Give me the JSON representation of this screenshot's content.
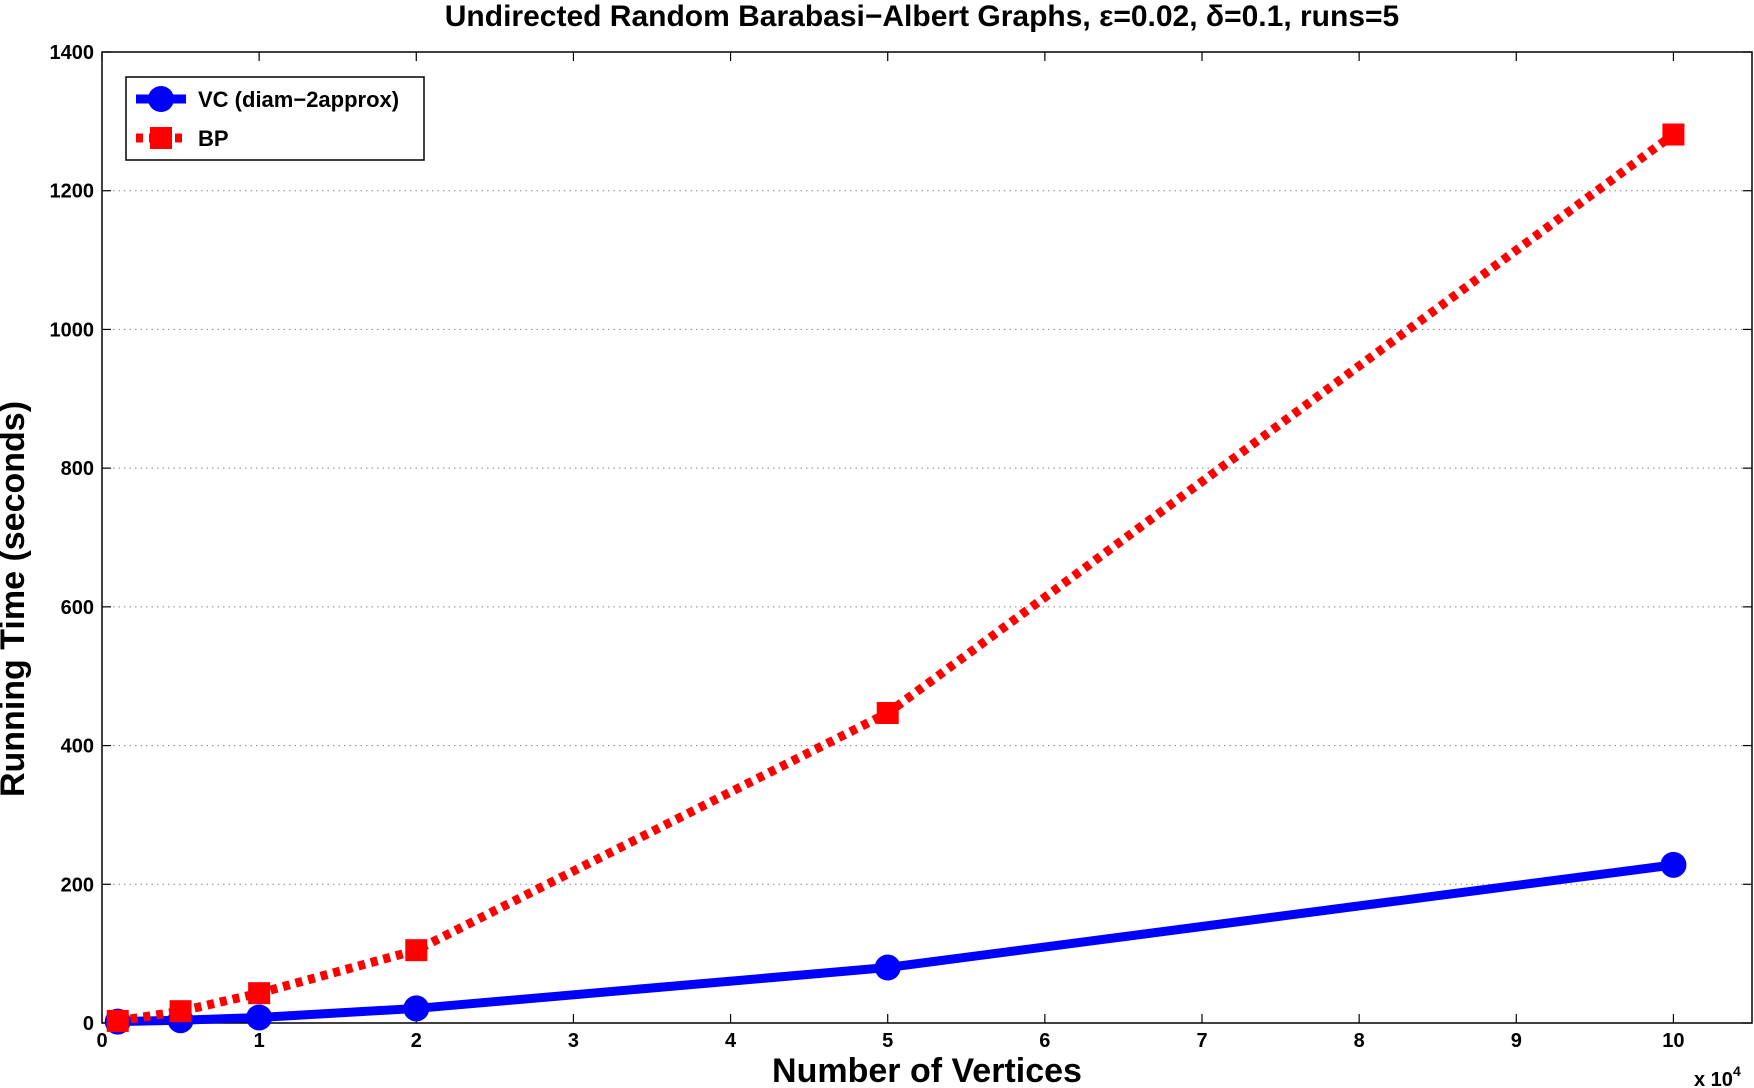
{
  "chart_data": {
    "type": "line",
    "title": "Undirected Random Barabasi−Albert Graphs, ε=0.02, δ=0.1, runs=5",
    "xlabel": "Number of Vertices",
    "ylabel": "Running Time (seconds)",
    "x_multiplier": "x 10",
    "x_multiplier_exp": "4",
    "xlim": [
      0,
      10.5
    ],
    "ylim": [
      0,
      1400
    ],
    "xticks": [
      0,
      1,
      2,
      3,
      4,
      5,
      6,
      7,
      8,
      9,
      10
    ],
    "yticks": [
      0,
      200,
      400,
      600,
      800,
      1000,
      1200,
      1400
    ],
    "grid": true,
    "legend_position": "top-left",
    "x": [
      0.1,
      0.5,
      1,
      2,
      5,
      10
    ],
    "series": [
      {
        "name": "VC (diam−2approx)",
        "values": [
          2,
          4,
          8,
          21,
          80,
          228
        ],
        "color": "#0000ff",
        "line_style": "solid",
        "marker": "circle"
      },
      {
        "name": "BP",
        "values": [
          3,
          17,
          43,
          105,
          447,
          1281
        ],
        "color": "#ff0000",
        "line_style": "dotted",
        "marker": "square"
      }
    ]
  }
}
